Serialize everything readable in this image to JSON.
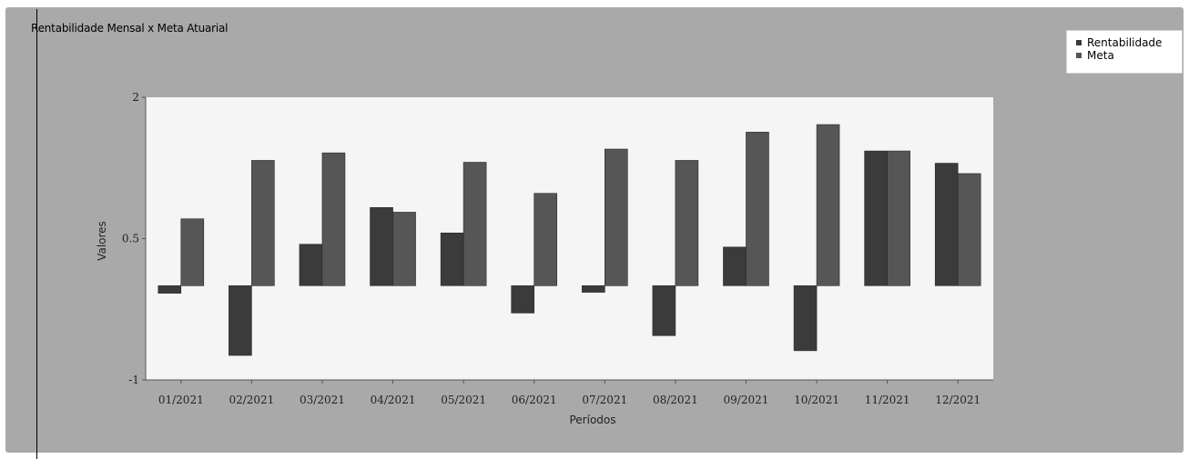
{
  "chart_data": {
    "type": "bar",
    "title": "Rentabilidade Mensal x Meta Atuarial",
    "xlabel": "Períodos",
    "ylabel": "Valores",
    "ylim": [
      -1,
      2
    ],
    "yticks": [
      "-1",
      "0.5",
      "2"
    ],
    "ytick_values": [
      -1,
      0.5,
      2
    ],
    "legend_position": "top-right",
    "grid": false,
    "categories": [
      "01/2021",
      "02/2021",
      "03/2021",
      "04/2021",
      "05/2021",
      "06/2021",
      "07/2021",
      "08/2021",
      "09/2021",
      "10/2021",
      "11/2021",
      "12/2021"
    ],
    "series": [
      {
        "name": "Rentabilidade",
        "color": "#3b3b3b",
        "values": [
          -0.08,
          -0.74,
          0.44,
          0.83,
          0.56,
          -0.29,
          -0.07,
          -0.53,
          0.41,
          -0.69,
          1.43,
          1.3
        ]
      },
      {
        "name": "Meta",
        "color": "#565656",
        "values": [
          0.71,
          1.33,
          1.41,
          0.78,
          1.31,
          0.98,
          1.45,
          1.33,
          1.63,
          1.71,
          1.43,
          1.19
        ]
      }
    ]
  }
}
